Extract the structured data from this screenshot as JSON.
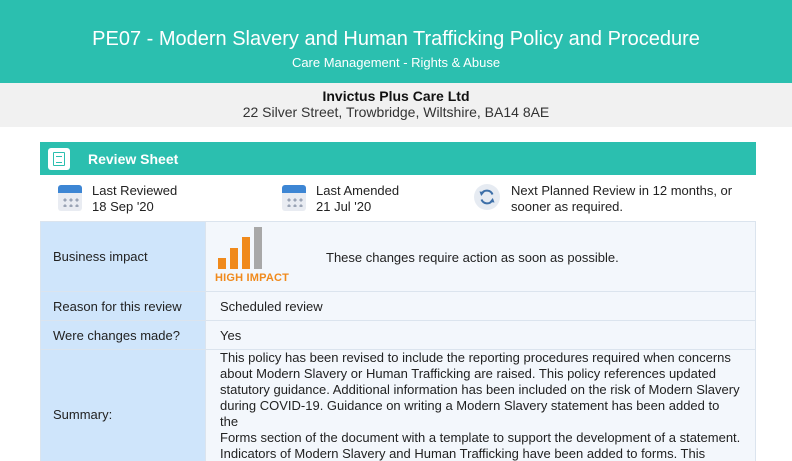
{
  "banner": {
    "title": "PE07 - Modern Slavery and Human Trafficking Policy and Procedure",
    "subtitle": "Care Management - Rights & Abuse"
  },
  "organisation": {
    "name": "Invictus Plus Care Ltd",
    "address": "22 Silver Street, Trowbridge, Wiltshire, BA14 8AE"
  },
  "review_sheet": {
    "title": "Review Sheet",
    "icon": "document-icon",
    "last_reviewed": {
      "label": "Last Reviewed",
      "value": "18 Sep '20",
      "icon": "calendar-icon"
    },
    "last_amended": {
      "label": "Last Amended",
      "value": "21 Jul '20",
      "icon": "calendar-icon"
    },
    "next_review": {
      "line1": "Next Planned Review in 12 months, or",
      "line2": "sooner as required.",
      "icon": "refresh-icon"
    }
  },
  "rows": {
    "business_impact": {
      "label": "Business impact",
      "impact_level": "HIGH IMPACT",
      "impact_bars_filled": 3,
      "impact_bars_total": 4,
      "text": "These changes require action as soon as possible."
    },
    "reason": {
      "label": "Reason for this review",
      "value": "Scheduled review"
    },
    "changes": {
      "label": "Were changes made?",
      "value": "Yes"
    },
    "summary": {
      "label": "Summary:",
      "lines": [
        "This policy has been revised to include the reporting procedures required when concerns",
        "about Modern Slavery or Human Trafficking are raised. This policy references updated",
        "statutory guidance. Additional information has been included on the risk of Modern Slavery",
        "during COVID-19. Guidance on writing a Modern Slavery statement has been added to the",
        "Forms section of the document with a template to support the development of a statement.",
        "Indicators of Modern Slavery and Human Trafficking have been added to forms. This policy"
      ]
    }
  },
  "colors": {
    "teal": "#2bbfaf",
    "label_cell": "#cfe5fb",
    "value_cell": "#f3f7fc",
    "impact_orange": "#f08a1c",
    "impact_grey": "#a8a8a8"
  }
}
